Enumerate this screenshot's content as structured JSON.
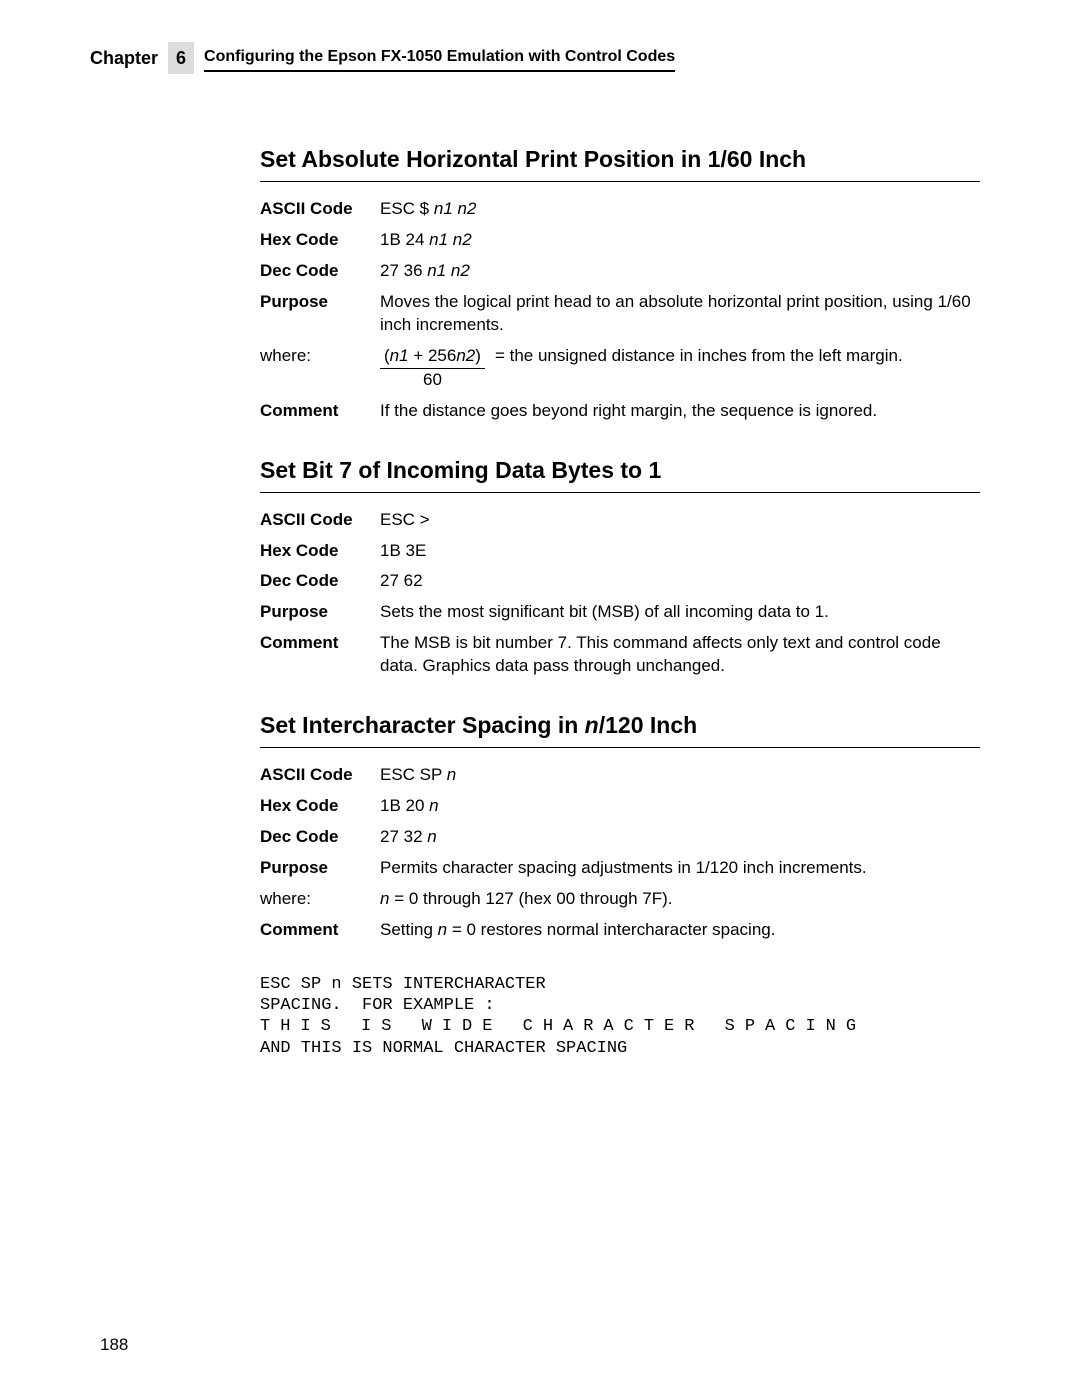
{
  "chapter": {
    "label": "Chapter",
    "number": "6",
    "title": "Configuring the Epson FX-1050 Emulation with Control Codes"
  },
  "sections": {
    "s1": {
      "heading": "Set Absolute Horizontal Print Position in 1/60 Inch",
      "ascii_label": "ASCII Code",
      "ascii_value_pre": "ESC $ ",
      "ascii_value_ital": "n1 n2",
      "hex_label": "Hex Code",
      "hex_value_pre": "1B 24 ",
      "hex_value_ital": "n1 n2",
      "dec_label": "Dec Code",
      "dec_value_pre": "27 36 ",
      "dec_value_ital": "n1 n2",
      "purpose_label": "Purpose",
      "purpose_value": "Moves the logical print head to an absolute horizontal print position, using 1/60 inch increments.",
      "where_label": "where:",
      "formula_num_open": "(",
      "formula_num_n1": "n1",
      "formula_num_plus": " + 256",
      "formula_num_n2": "n2",
      "formula_num_close": ")",
      "formula_den": "60",
      "formula_eq": " = ",
      "formula_desc": "the unsigned distance in inches from the left margin.",
      "comment_label": "Comment",
      "comment_value": "If the distance goes beyond right margin, the sequence is ignored."
    },
    "s2": {
      "heading": "Set Bit 7 of Incoming Data Bytes to 1",
      "ascii_label": "ASCII Code",
      "ascii_value": "ESC >",
      "hex_label": "Hex Code",
      "hex_value": "1B 3E",
      "dec_label": "Dec Code",
      "dec_value": "27 62",
      "purpose_label": "Purpose",
      "purpose_value": "Sets the most significant bit (MSB) of all incoming data to 1.",
      "comment_label": "Comment",
      "comment_value": "The MSB is bit number 7. This command affects only text and control code data. Graphics data pass through unchanged."
    },
    "s3": {
      "heading_pre": "Set Intercharacter Spacing in ",
      "heading_ital": "n",
      "heading_post": "/120 Inch",
      "ascii_label": "ASCII Code",
      "ascii_value_pre": "ESC SP ",
      "ascii_value_ital": "n",
      "hex_label": "Hex Code",
      "hex_value_pre": "1B 20 ",
      "hex_value_ital": "n",
      "dec_label": "Dec Code",
      "dec_value_pre": "27 32 ",
      "dec_value_ital": "n",
      "purpose_label": "Purpose",
      "purpose_value": "Permits character spacing adjustments in 1/120 inch increments.",
      "where_label": "where:",
      "where_ital": "n",
      "where_post": " = 0 through 127 (hex 00 through 7F).",
      "comment_label": "Comment",
      "comment_pre": "Setting ",
      "comment_ital": "n",
      "comment_post": " = 0 restores normal intercharacter spacing."
    }
  },
  "sample": {
    "line1": "ESC SP n SETS INTERCHARACTER",
    "line2": "SPACING.  FOR EXAMPLE :",
    "line3": "THIS IS WIDE CHARACTER SPACING",
    "line4": "AND THIS IS NORMAL CHARACTER SPACING"
  },
  "page_number": "188"
}
